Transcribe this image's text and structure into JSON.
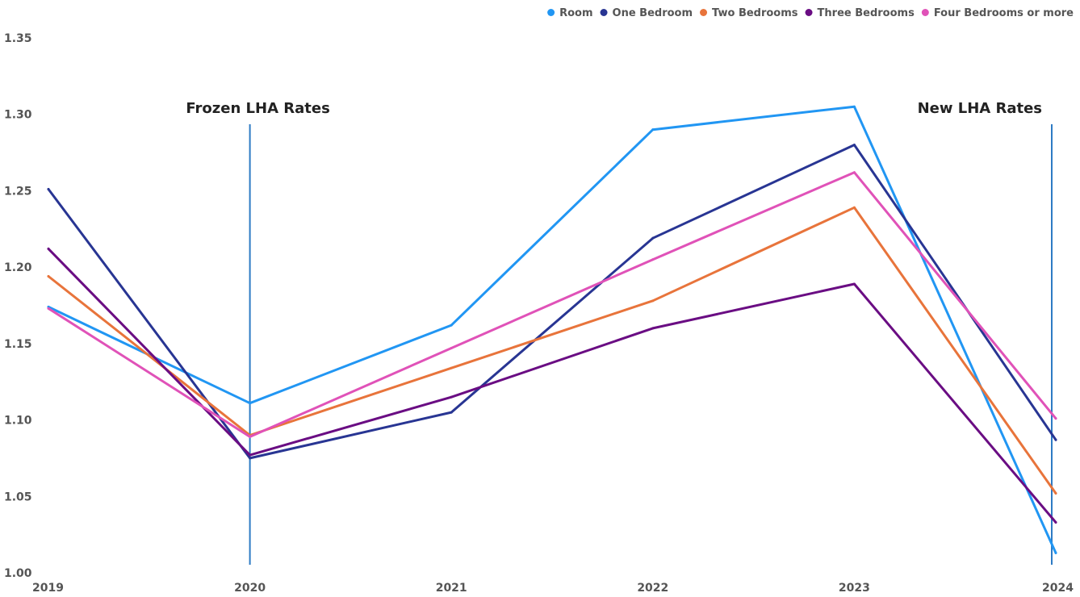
{
  "chart_data": {
    "type": "line",
    "x": [
      "2019",
      "2020",
      "2021",
      "2022",
      "2023",
      "2024"
    ],
    "ylim": [
      1.0,
      1.35
    ],
    "yticks": [
      "1.00",
      "1.05",
      "1.10",
      "1.15",
      "1.20",
      "1.25",
      "1.30",
      "1.35"
    ],
    "grid": false,
    "legend_position": "top-right",
    "series": [
      {
        "name": "Room",
        "color": "#2196F3",
        "values": [
          1.174,
          1.111,
          1.162,
          1.29,
          1.305,
          1.013
        ]
      },
      {
        "name": "One Bedroom",
        "color": "#283593",
        "values": [
          1.251,
          1.075,
          1.105,
          1.219,
          1.28,
          1.087
        ]
      },
      {
        "name": "Two Bedrooms",
        "color": "#E8743B",
        "values": [
          1.194,
          1.09,
          1.134,
          1.178,
          1.239,
          1.052
        ]
      },
      {
        "name": "Three Bedrooms",
        "color": "#6A0D83",
        "values": [
          1.212,
          1.077,
          1.115,
          1.16,
          1.189,
          1.033
        ]
      },
      {
        "name": "Four Bedrooms or more",
        "color": "#E052B8",
        "values": [
          1.173,
          1.089,
          1.147,
          1.205,
          1.262,
          1.101
        ]
      }
    ],
    "annotations": [
      {
        "text": "Frozen LHA Rates",
        "x": "2020",
        "color": "#2E7BC4"
      },
      {
        "text": "New LHA Rates",
        "x": "2024",
        "color": "#2E7BC4"
      }
    ]
  }
}
